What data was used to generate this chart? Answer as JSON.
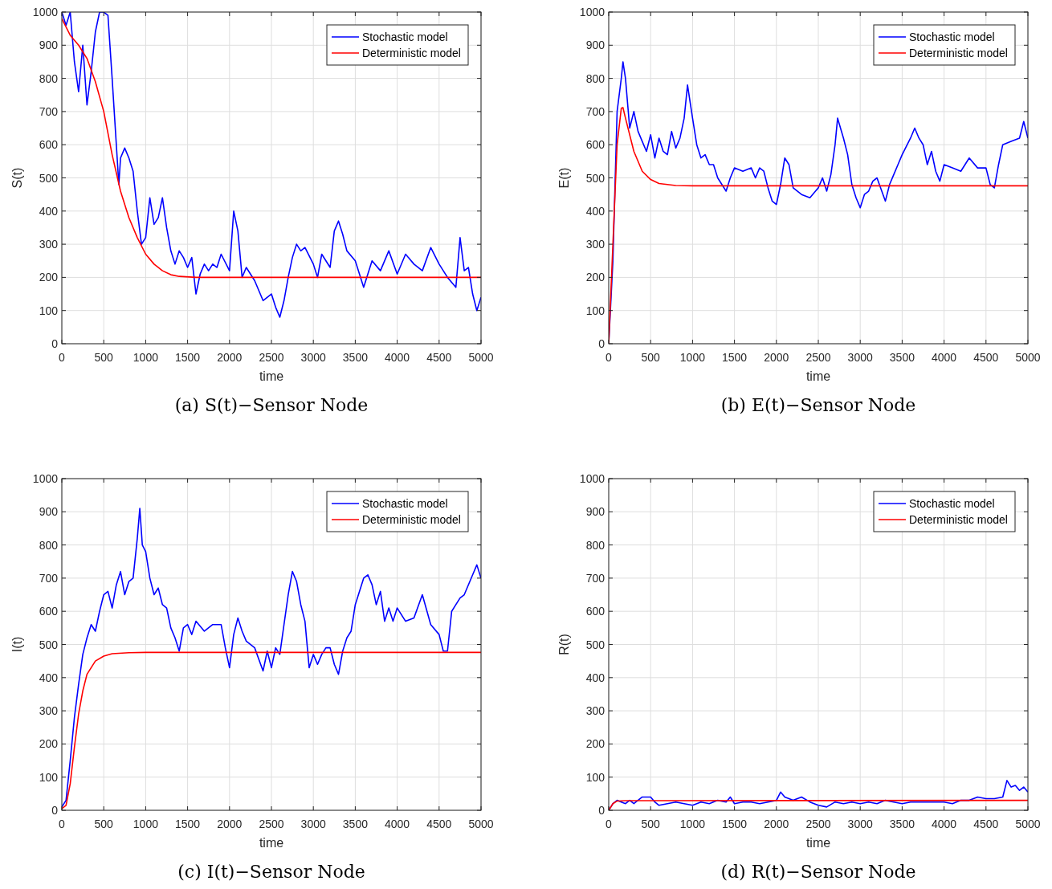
{
  "chart_data": [
    {
      "type": "line",
      "title": "(a) S(t)−Sensor Node",
      "xlabel": "time",
      "ylabel": "S(t)",
      "xlim": [
        0,
        5000
      ],
      "ylim": [
        0,
        1000
      ],
      "xticks": [
        0,
        500,
        1000,
        1500,
        2000,
        2500,
        3000,
        3500,
        4000,
        4500,
        5000
      ],
      "yticks": [
        0,
        100,
        200,
        300,
        400,
        500,
        600,
        700,
        800,
        900,
        1000
      ],
      "grid": true,
      "legend": "top right",
      "series": [
        {
          "name": "Stochastic model",
          "color": "#0000ff",
          "x": [
            0,
            50,
            100,
            150,
            200,
            250,
            300,
            350,
            400,
            450,
            500,
            550,
            600,
            650,
            680,
            700,
            750,
            800,
            850,
            900,
            950,
            1000,
            1050,
            1100,
            1150,
            1200,
            1250,
            1300,
            1350,
            1400,
            1450,
            1500,
            1550,
            1600,
            1650,
            1700,
            1750,
            1800,
            1850,
            1900,
            2000,
            2050,
            2100,
            2150,
            2200,
            2300,
            2400,
            2500,
            2550,
            2600,
            2650,
            2700,
            2750,
            2800,
            2850,
            2900,
            3000,
            3050,
            3100,
            3200,
            3250,
            3300,
            3350,
            3400,
            3500,
            3600,
            3700,
            3800,
            3900,
            4000,
            4100,
            4200,
            4300,
            4400,
            4500,
            4600,
            4700,
            4750,
            4800,
            4850,
            4900,
            4950,
            5000
          ],
          "values": [
            1000,
            960,
            1000,
            850,
            760,
            900,
            720,
            820,
            940,
            1000,
            1000,
            990,
            800,
            600,
            480,
            560,
            590,
            560,
            520,
            400,
            300,
            320,
            440,
            360,
            380,
            440,
            350,
            280,
            240,
            280,
            260,
            230,
            260,
            150,
            210,
            240,
            220,
            240,
            230,
            270,
            220,
            400,
            340,
            200,
            230,
            190,
            130,
            150,
            110,
            80,
            130,
            200,
            260,
            300,
            280,
            290,
            240,
            200,
            270,
            230,
            340,
            370,
            330,
            280,
            250,
            170,
            250,
            220,
            280,
            210,
            270,
            240,
            220,
            290,
            240,
            200,
            170,
            320,
            220,
            230,
            150,
            100,
            140
          ]
        },
        {
          "name": "Deterministic model",
          "color": "#ff0000",
          "x": [
            0,
            100,
            200,
            300,
            400,
            500,
            600,
            700,
            800,
            900,
            1000,
            1100,
            1200,
            1300,
            1400,
            1600,
            5000
          ],
          "values": [
            980,
            930,
            900,
            860,
            790,
            700,
            570,
            460,
            380,
            320,
            270,
            240,
            220,
            208,
            203,
            200,
            200
          ]
        }
      ]
    },
    {
      "type": "line",
      "title": "(b) E(t)−Sensor Node",
      "xlabel": "time",
      "ylabel": "E(t)",
      "xlim": [
        0,
        5000
      ],
      "ylim": [
        0,
        1000
      ],
      "xticks": [
        0,
        500,
        1000,
        1500,
        2000,
        2500,
        3000,
        3500,
        4000,
        4500,
        5000
      ],
      "yticks": [
        0,
        100,
        200,
        300,
        400,
        500,
        600,
        700,
        800,
        900,
        1000
      ],
      "grid": true,
      "legend": "top right",
      "series": [
        {
          "name": "Stochastic model",
          "color": "#0000ff",
          "x": [
            0,
            50,
            100,
            150,
            170,
            200,
            250,
            300,
            350,
            400,
            450,
            500,
            550,
            600,
            650,
            700,
            750,
            800,
            850,
            900,
            940,
            1000,
            1050,
            1100,
            1150,
            1200,
            1250,
            1300,
            1400,
            1450,
            1500,
            1600,
            1700,
            1750,
            1800,
            1850,
            1900,
            1950,
            2000,
            2050,
            2100,
            2150,
            2200,
            2300,
            2400,
            2500,
            2550,
            2600,
            2650,
            2700,
            2730,
            2800,
            2850,
            2900,
            2950,
            3000,
            3050,
            3100,
            3150,
            3200,
            3300,
            3350,
            3400,
            3450,
            3500,
            3600,
            3650,
            3700,
            3750,
            3800,
            3850,
            3900,
            3950,
            4000,
            4100,
            4200,
            4300,
            4400,
            4500,
            4550,
            4600,
            4650,
            4700,
            4800,
            4900,
            4950,
            5000
          ],
          "values": [
            0,
            250,
            700,
            800,
            850,
            800,
            650,
            700,
            640,
            610,
            580,
            630,
            560,
            620,
            580,
            570,
            640,
            590,
            620,
            680,
            780,
            680,
            600,
            560,
            570,
            540,
            540,
            500,
            460,
            500,
            530,
            520,
            530,
            500,
            530,
            520,
            470,
            430,
            420,
            480,
            560,
            540,
            470,
            450,
            440,
            470,
            500,
            460,
            510,
            600,
            680,
            620,
            570,
            480,
            440,
            410,
            450,
            460,
            490,
            500,
            430,
            480,
            510,
            540,
            570,
            620,
            650,
            620,
            600,
            540,
            580,
            520,
            490,
            540,
            530,
            520,
            560,
            530,
            530,
            480,
            470,
            540,
            600,
            610,
            620,
            670,
            620
          ]
        },
        {
          "name": "Deterministic model",
          "color": "#ff0000",
          "x": [
            0,
            50,
            100,
            150,
            170,
            200,
            300,
            400,
            500,
            600,
            800,
            1000,
            5000
          ],
          "values": [
            0,
            300,
            600,
            710,
            712,
            680,
            580,
            520,
            495,
            483,
            477,
            476,
            476
          ]
        }
      ]
    },
    {
      "type": "line",
      "title": "(c) I(t)−Sensor Node",
      "xlabel": "time",
      "ylabel": "I(t)",
      "xlim": [
        0,
        5000
      ],
      "ylim": [
        0,
        1000
      ],
      "xticks": [
        0,
        500,
        1000,
        1500,
        2000,
        2500,
        3000,
        3500,
        4000,
        4500,
        5000
      ],
      "yticks": [
        0,
        100,
        200,
        300,
        400,
        500,
        600,
        700,
        800,
        900,
        1000
      ],
      "grid": true,
      "legend": "top right",
      "series": [
        {
          "name": "Stochastic model",
          "color": "#0000ff",
          "x": [
            0,
            50,
            100,
            150,
            200,
            250,
            300,
            350,
            400,
            450,
            500,
            550,
            600,
            650,
            700,
            750,
            800,
            850,
            900,
            930,
            960,
            1000,
            1050,
            1100,
            1150,
            1200,
            1250,
            1300,
            1350,
            1400,
            1450,
            1500,
            1550,
            1600,
            1700,
            1800,
            1900,
            1950,
            2000,
            2050,
            2100,
            2150,
            2200,
            2300,
            2400,
            2450,
            2500,
            2550,
            2600,
            2650,
            2700,
            2750,
            2800,
            2850,
            2900,
            2950,
            3000,
            3050,
            3100,
            3150,
            3200,
            3250,
            3300,
            3350,
            3400,
            3450,
            3500,
            3600,
            3650,
            3700,
            3750,
            3800,
            3850,
            3900,
            3950,
            4000,
            4100,
            4200,
            4300,
            4400,
            4500,
            4550,
            4600,
            4650,
            4700,
            4750,
            4800,
            4900,
            4950,
            5000
          ],
          "values": [
            10,
            30,
            150,
            280,
            380,
            470,
            520,
            560,
            540,
            600,
            650,
            660,
            610,
            680,
            720,
            650,
            690,
            700,
            820,
            910,
            800,
            780,
            700,
            650,
            670,
            620,
            610,
            550,
            520,
            480,
            550,
            560,
            530,
            570,
            540,
            560,
            560,
            490,
            430,
            530,
            580,
            540,
            510,
            490,
            420,
            480,
            430,
            490,
            470,
            560,
            650,
            720,
            690,
            620,
            570,
            430,
            470,
            440,
            470,
            490,
            490,
            440,
            410,
            480,
            520,
            540,
            620,
            700,
            710,
            680,
            620,
            660,
            570,
            610,
            570,
            610,
            570,
            580,
            650,
            560,
            530,
            480,
            480,
            600,
            620,
            640,
            650,
            710,
            740,
            700
          ]
        },
        {
          "name": "Deterministic model",
          "color": "#ff0000",
          "x": [
            0,
            50,
            100,
            150,
            200,
            250,
            300,
            400,
            500,
            600,
            800,
            1000,
            5000
          ],
          "values": [
            5,
            15,
            80,
            190,
            290,
            360,
            410,
            450,
            465,
            472,
            475,
            476,
            476
          ]
        }
      ]
    },
    {
      "type": "line",
      "title": "(d) R(t)−Sensor Node",
      "xlabel": "time",
      "ylabel": "R(t)",
      "xlim": [
        0,
        5000
      ],
      "ylim": [
        0,
        1000
      ],
      "xticks": [
        0,
        500,
        1000,
        1500,
        2000,
        2500,
        3000,
        3500,
        4000,
        4500,
        5000
      ],
      "yticks": [
        0,
        100,
        200,
        300,
        400,
        500,
        600,
        700,
        800,
        900,
        1000
      ],
      "grid": true,
      "legend": "top right",
      "series": [
        {
          "name": "Stochastic model",
          "color": "#0000ff",
          "x": [
            0,
            50,
            100,
            150,
            200,
            250,
            300,
            400,
            500,
            550,
            600,
            700,
            800,
            900,
            1000,
            1100,
            1200,
            1300,
            1400,
            1450,
            1500,
            1600,
            1700,
            1800,
            1900,
            2000,
            2050,
            2100,
            2200,
            2300,
            2400,
            2500,
            2600,
            2700,
            2800,
            2900,
            3000,
            3100,
            3200,
            3300,
            3400,
            3500,
            3600,
            3700,
            3800,
            3900,
            4000,
            4100,
            4200,
            4300,
            4400,
            4500,
            4600,
            4700,
            4750,
            4800,
            4850,
            4900,
            4950,
            5000
          ],
          "values": [
            0,
            20,
            30,
            25,
            20,
            30,
            20,
            40,
            40,
            25,
            15,
            20,
            25,
            20,
            15,
            25,
            20,
            30,
            25,
            40,
            20,
            25,
            25,
            20,
            25,
            30,
            55,
            40,
            30,
            40,
            25,
            15,
            10,
            25,
            20,
            25,
            20,
            25,
            20,
            30,
            25,
            20,
            25,
            25,
            25,
            25,
            25,
            20,
            30,
            30,
            40,
            35,
            35,
            40,
            90,
            70,
            75,
            60,
            70,
            55
          ]
        },
        {
          "name": "Deterministic model",
          "color": "#ff0000",
          "x": [
            0,
            50,
            100,
            200,
            500,
            5000
          ],
          "values": [
            0,
            20,
            28,
            29,
            29,
            30
          ]
        }
      ]
    }
  ]
}
